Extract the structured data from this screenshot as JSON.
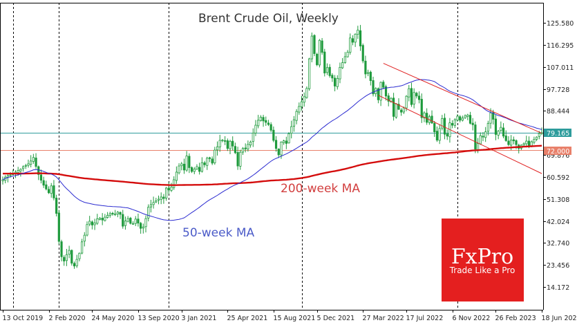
{
  "chart_data": {
    "type": "candlestick",
    "title": "Brent Crude Oil, Weekly",
    "xlabel": "",
    "ylabel": "",
    "ylim": [
      9,
      130
    ],
    "x_ticks": [
      "13 Oct 2019",
      "2 Feb 2020",
      "24 May 2020",
      "13 Sep 2020",
      "3 Jan 2021",
      "25 Apr 2021",
      "15 Aug 2021",
      "5 Dec 2021",
      "27 Mar 2022",
      "17 Jul 2022",
      "6 Nov 2022",
      "26 Feb 2023",
      "18 Jun 2023"
    ],
    "y_ticks": [
      "125.580",
      "116.295",
      "107.011",
      "97.728",
      "88.444",
      "69.876",
      "60.592",
      "51.308",
      "42.024",
      "32.740",
      "23.456",
      "14.172"
    ],
    "y_tick_values": [
      125.58,
      116.295,
      107.011,
      97.728,
      88.444,
      69.876,
      60.592,
      51.308,
      42.024,
      32.74,
      23.456,
      14.172
    ],
    "dashed_vlines_index": [
      4,
      22,
      65,
      117,
      178,
      235
    ],
    "price_line": {
      "label": "79.165",
      "value": 79.165,
      "color": "#2e9c9c"
    },
    "level_line": {
      "label": "72.000",
      "value": 72.0,
      "color": "#e8806a"
    },
    "weekly_close": [
      59.4,
      60.5,
      61.2,
      61.4,
      61.9,
      62.6,
      63.3,
      63.8,
      64.9,
      65.4,
      66.1,
      67.3,
      68.8,
      65.0,
      61.6,
      59.2,
      57.1,
      55.5,
      53.9,
      56.8,
      51.7,
      45.2,
      33.4,
      26.9,
      25.1,
      27.8,
      29.6,
      24.2,
      23.0,
      25.8,
      28.4,
      33.2,
      36.0,
      40.5,
      41.9,
      40.3,
      41.2,
      42.9,
      43.2,
      42.4,
      43.6,
      44.4,
      45.1,
      44.9,
      45.0,
      45.7,
      44.8,
      39.8,
      42.0,
      43.0,
      41.0,
      40.9,
      42.8,
      41.1,
      38.9,
      39.5,
      43.0,
      47.8,
      48.9,
      49.8,
      50.5,
      51.2,
      52.1,
      51.5,
      55.9,
      55.1,
      56.3,
      59.4,
      62.6,
      65.2,
      66.1,
      63.5,
      69.4,
      64.5,
      62.9,
      63.9,
      64.9,
      62.9,
      66.6,
      65.7,
      68.5,
      68.3,
      66.4,
      71.9,
      73.3,
      76.0,
      76.1,
      75.6,
      72.6,
      75.6,
      73.6,
      70.8,
      65.2,
      71.0,
      72.6,
      72.4,
      74.3,
      75.3,
      79.1,
      82.4,
      84.5,
      85.8,
      84.2,
      83.6,
      82.7,
      80.3,
      76.0,
      72.6,
      69.9,
      75.3,
      75.8,
      74.7,
      78.8,
      81.8,
      84.7,
      88.2,
      90.3,
      92.3,
      94.4,
      97.9,
      110.4,
      120.0,
      112.6,
      107.9,
      118.2,
      113.1,
      104.4,
      106.7,
      103.3,
      102.3,
      98.9,
      102.1,
      106.8,
      108.8,
      111.3,
      113.2,
      119.2,
      117.4,
      120.8,
      122.5,
      115.8,
      109.5,
      104.0,
      104.6,
      101.2,
      95.6,
      97.9,
      93.1,
      100.5,
      98.4,
      94.7,
      92.5,
      93.7,
      86.1,
      91.4,
      89.1,
      87.9,
      89.7,
      94.6,
      97.8,
      91.1,
      96.2,
      94.7,
      93.2,
      85.6,
      87.6,
      83.6,
      86.0,
      83.3,
      79.6,
      76.1,
      81.0,
      85.2,
      78.6,
      77.8,
      83.4,
      82.4,
      84.7,
      86.2,
      84.5,
      85.4,
      86.3,
      86.7,
      83.2,
      82.6,
      72.3,
      74.7,
      78.0,
      77.4,
      79.6,
      83.2,
      87.6,
      84.9,
      78.5,
      79.9,
      81.5,
      77.8,
      75.9,
      74.2,
      76.1,
      75.8,
      74.2,
      72.6,
      74.0,
      74.6,
      75.7,
      73.8,
      75.4,
      76.4,
      77.4,
      78.9,
      79.2
    ]
  },
  "ma_labels": {
    "ma50": {
      "text": "50-week MA",
      "color": "#4b5bc8"
    },
    "ma200": {
      "text": "200-week MA",
      "color": "#d23f3f"
    }
  },
  "colors": {
    "candle": "#1e9a3c",
    "ma50": "#2a2ad0",
    "ma200": "#d40c0c",
    "channel": "#e02020",
    "price_line": "#2e9c9c",
    "level_line": "#e8806a",
    "grid": "#000000"
  },
  "logo": {
    "brand": "FxPro",
    "tagline": "Trade Like a Pro",
    "bg": "#e41f1f"
  }
}
